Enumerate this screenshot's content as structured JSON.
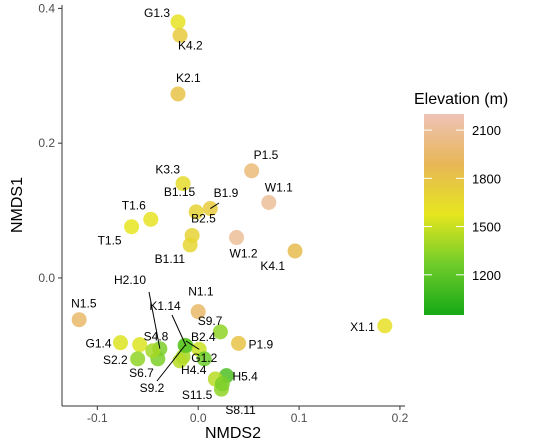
{
  "chart_data": {
    "type": "scatter",
    "title": "",
    "xlabel": "NMDS2",
    "ylabel": "NMDS1",
    "xlim": [
      -0.135,
      0.205
    ],
    "ylim": [
      -0.19,
      0.405
    ],
    "x_ticks": [
      -0.1,
      0.0,
      0.1,
      0.2
    ],
    "x_tick_labels": [
      "-0.1",
      "0.0",
      "0.1",
      "0.2"
    ],
    "y_ticks": [
      0.0,
      0.2,
      0.4
    ],
    "y_tick_labels": [
      "0.0",
      "0.2",
      "0.4"
    ],
    "grid": false,
    "legend": {
      "title": "Elevation (m)",
      "placement": "right",
      "type": "colorbar",
      "range": [
        950,
        2200
      ],
      "ticks": [
        1200,
        1500,
        1800,
        2100
      ],
      "tick_labels": [
        "1200",
        "1500",
        "1800",
        "2100"
      ],
      "colors": [
        "#16a916",
        "#6fcc2a",
        "#e6e61f",
        "#e7b656",
        "#efc3b7"
      ]
    },
    "points": [
      {
        "label": "G1.3",
        "x": -0.02,
        "y": 0.38,
        "elevation": 1600
      },
      {
        "label": "K4.2",
        "x": -0.018,
        "y": 0.36,
        "elevation": 1750
      },
      {
        "label": "K2.1",
        "x": -0.02,
        "y": 0.273,
        "elevation": 1800
      },
      {
        "label": "P1.5",
        "x": 0.053,
        "y": 0.159,
        "elevation": 2000
      },
      {
        "label": "K3.3",
        "x": -0.015,
        "y": 0.14,
        "elevation": 1650
      },
      {
        "label": "W1.1",
        "x": 0.07,
        "y": 0.112,
        "elevation": 2100
      },
      {
        "label": "B1.15",
        "x": -0.002,
        "y": 0.098,
        "elevation": 1700
      },
      {
        "label": "B1.9",
        "x": 0.012,
        "y": 0.103,
        "elevation": 1750
      },
      {
        "label": "T1.6",
        "x": -0.047,
        "y": 0.087,
        "elevation": 1600
      },
      {
        "label": "T1.5",
        "x": -0.066,
        "y": 0.076,
        "elevation": 1580
      },
      {
        "label": "B2.5",
        "x": -0.006,
        "y": 0.063,
        "elevation": 1700
      },
      {
        "label": "W1.2",
        "x": 0.038,
        "y": 0.06,
        "elevation": 2100
      },
      {
        "label": "B1.11",
        "x": -0.008,
        "y": 0.049,
        "elevation": 1680
      },
      {
        "label": "K4.1",
        "x": 0.096,
        "y": 0.04,
        "elevation": 1850
      },
      {
        "label": "N1.1",
        "x": 0.0,
        "y": -0.05,
        "elevation": 1950
      },
      {
        "label": "N1.5",
        "x": -0.118,
        "y": -0.062,
        "elevation": 1950
      },
      {
        "label": "X1.1",
        "x": 0.185,
        "y": -0.071,
        "elevation": 1620
      },
      {
        "label": "S9.7",
        "x": 0.022,
        "y": -0.08,
        "elevation": 1350
      },
      {
        "label": "G1.4",
        "x": -0.077,
        "y": -0.096,
        "elevation": 1550
      },
      {
        "label": "S4.8",
        "x": -0.058,
        "y": -0.099,
        "elevation": 1550
      },
      {
        "label": "P1.9",
        "x": 0.04,
        "y": -0.097,
        "elevation": 1800
      },
      {
        "label": "K1.14",
        "x": -0.012,
        "y": -0.101,
        "elevation": 1250
      },
      {
        "label": "H2.10",
        "x": -0.038,
        "y": -0.105,
        "elevation": 1300
      },
      {
        "label": "B2.4",
        "x": 0.001,
        "y": -0.106,
        "elevation": 1500
      },
      {
        "label": "S2.2",
        "x": -0.06,
        "y": -0.12,
        "elevation": 1350
      },
      {
        "label": "S6.7",
        "x": -0.04,
        "y": -0.12,
        "elevation": 1300
      },
      {
        "label": "H4.4",
        "x": -0.015,
        "y": -0.117,
        "elevation": 1400
      },
      {
        "label": "G1.2",
        "x": 0.006,
        "y": -0.12,
        "elevation": 1250
      },
      {
        "label": "S9.2",
        "x": -0.013,
        "y": -0.1,
        "elevation": 1200
      },
      {
        "label": "H5.4",
        "x": 0.028,
        "y": -0.145,
        "elevation": 1150
      },
      {
        "label": "S11.5",
        "x": 0.017,
        "y": -0.15,
        "elevation": 1450
      },
      {
        "label": "S8.11",
        "x": 0.023,
        "y": -0.165,
        "elevation": 1350
      },
      {
        "label": "",
        "x": 0.024,
        "y": -0.157,
        "elevation": 1300
      },
      {
        "label": "",
        "x": -0.045,
        "y": -0.108,
        "elevation": 1400
      },
      {
        "label": "",
        "x": -0.018,
        "y": -0.123,
        "elevation": 1450
      }
    ]
  }
}
